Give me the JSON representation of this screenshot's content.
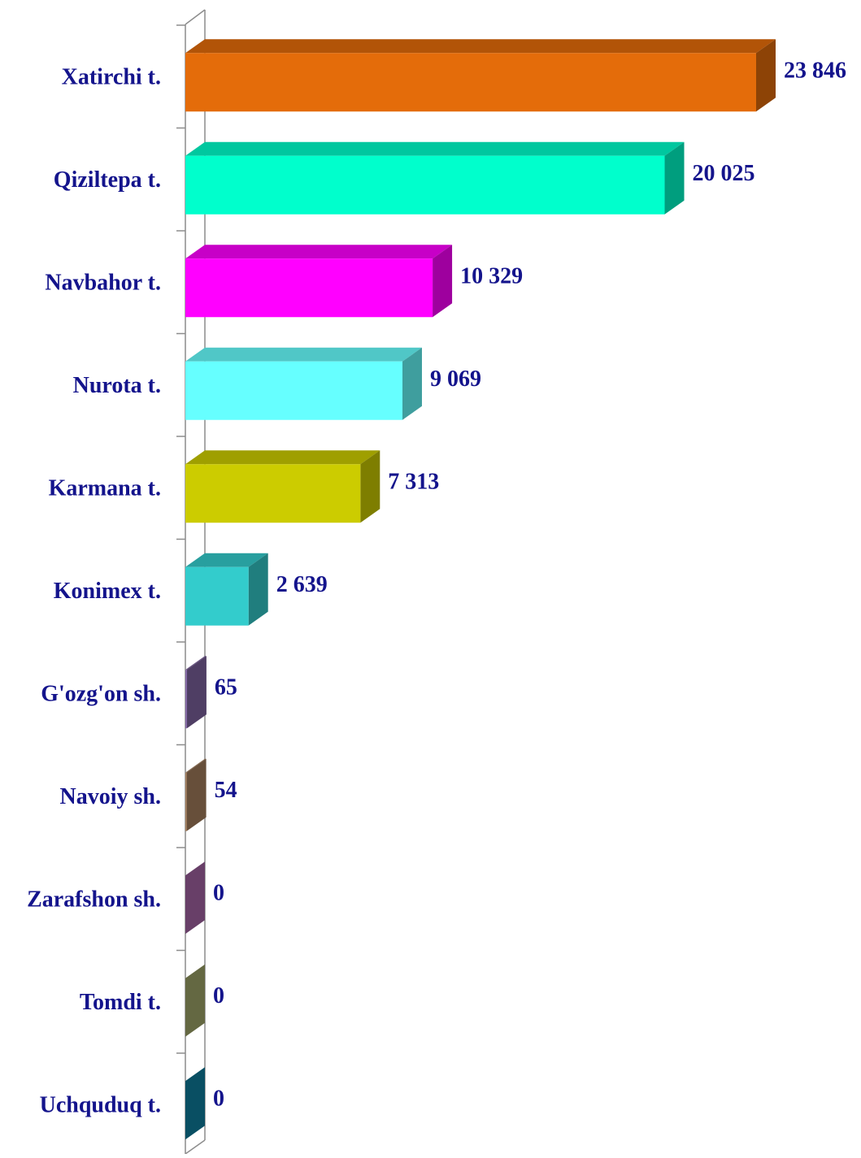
{
  "chart_data": {
    "type": "bar",
    "orientation": "horizontal",
    "categories": [
      "Xatirchi t.",
      "Qiziltepa t.",
      "Navbahor t.",
      "Nurota t.",
      "Karmana t.",
      "Konimex t.",
      "G'ozg'on sh.",
      "Navoiy sh.",
      "Zarafshon sh.",
      "Tomdi t.",
      "Uchquduq t."
    ],
    "values": [
      23846,
      20025,
      10329,
      9069,
      7313,
      2639,
      65,
      54,
      0,
      0,
      0
    ],
    "value_labels": [
      "23 846",
      "20 025",
      "10 329",
      "9 069",
      "7 313",
      "2 639",
      "65",
      "54",
      "0",
      "0",
      "0"
    ],
    "colors": [
      "#e46c0a",
      "#00ffcc",
      "#ff00ff",
      "#66ffff",
      "#cccc00",
      "#33cccc",
      "#8064a2",
      "#a6805e",
      "#a865a8",
      "#a2a86a",
      "#0e7fa0"
    ]
  }
}
